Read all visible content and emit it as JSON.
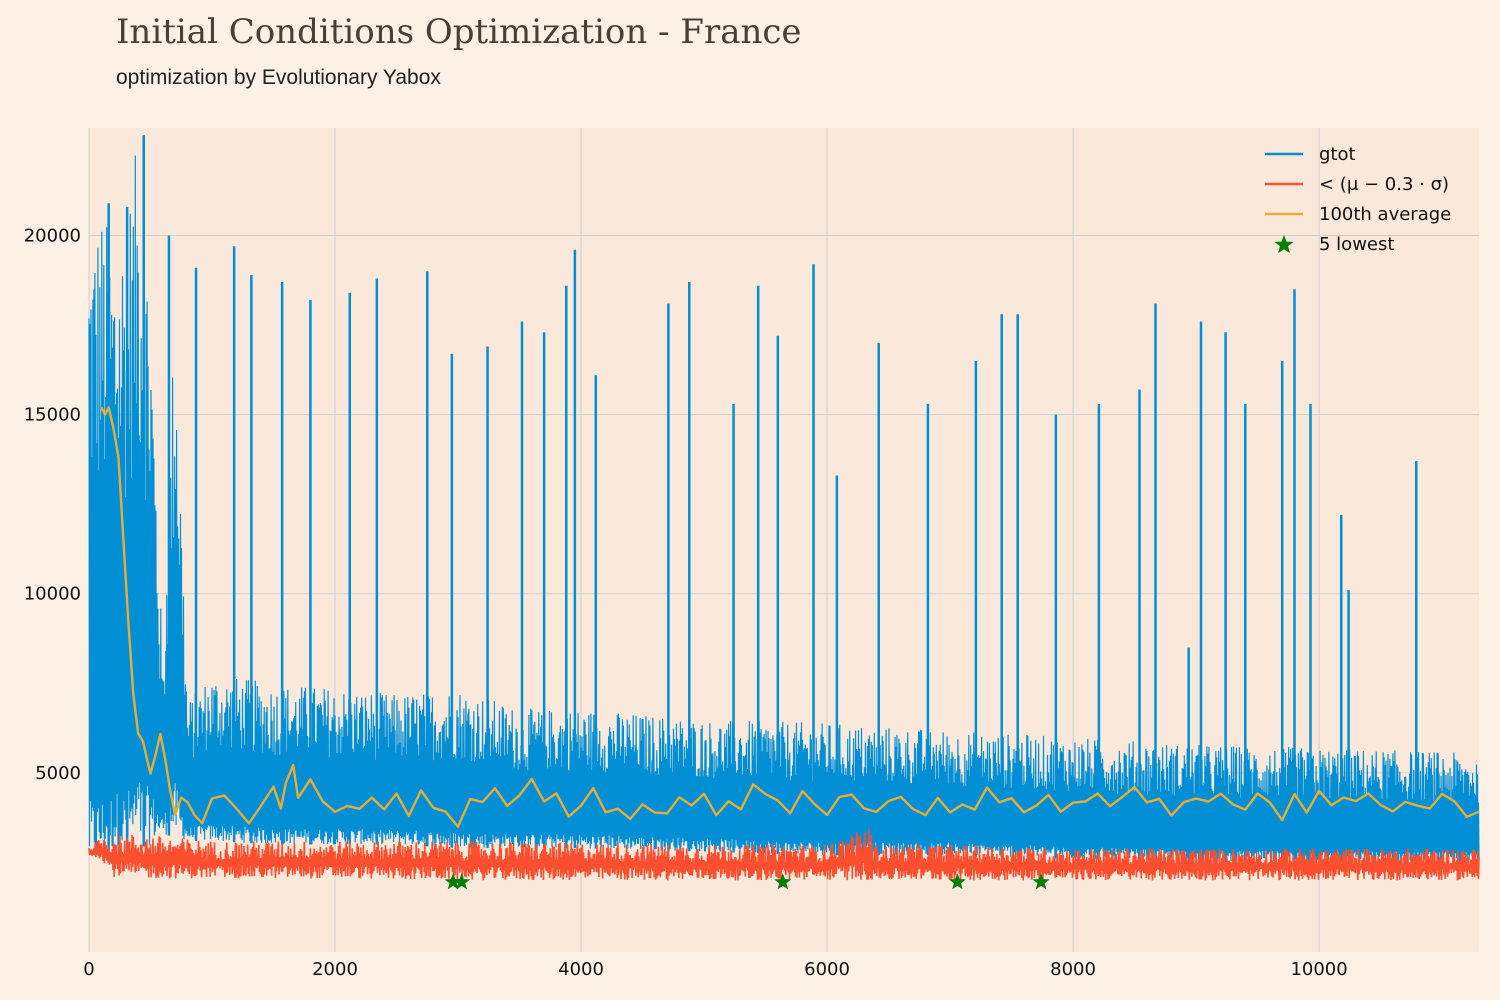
{
  "chart_data": {
    "type": "line",
    "title": "Initial Conditions Optimization - France",
    "subtitle": "optimization by Evolutionary Yabox",
    "xlabel": "",
    "ylabel": "",
    "xlim": [
      0,
      11300
    ],
    "ylim": [
      0,
      23000
    ],
    "x_ticks": [
      0,
      2000,
      4000,
      6000,
      8000,
      10000
    ],
    "y_ticks": [
      5000,
      10000,
      15000,
      20000
    ],
    "grid": true,
    "legend_position": "top-right",
    "colors": {
      "background": "#fdf1e6",
      "plot_area": "#fae8da",
      "grid": "#cfcfcf",
      "gtot": "#008fd5",
      "threshold": "#fc4f30",
      "average": "#e5ae38",
      "lowest": "#008000"
    },
    "series": [
      {
        "name": "gtot",
        "description_type": "envelope",
        "x": [
          0,
          100,
          200,
          300,
          400,
          500,
          600,
          700,
          800,
          1000,
          1500,
          2000,
          2500,
          3000,
          3500,
          4000,
          5000,
          6000,
          7000,
          8000,
          9000,
          10000,
          11000,
          11300
        ],
        "upper": [
          20500,
          20800,
          20000,
          20600,
          22800,
          18500,
          8000,
          18600,
          7000,
          7800,
          7500,
          7400,
          7200,
          7400,
          6800,
          6800,
          6500,
          6400,
          6200,
          6000,
          5800,
          5700,
          5600,
          5500
        ],
        "lower": [
          2400,
          2500,
          2800,
          2700,
          2900,
          3000,
          3300,
          3200,
          3100,
          3100,
          3000,
          3000,
          3000,
          2900,
          2900,
          2900,
          2800,
          2700,
          2700,
          2600,
          2500,
          2500,
          2500,
          2500
        ],
        "spikes": [
          {
            "x": 160,
            "y": 20900
          },
          {
            "x": 310,
            "y": 20800
          },
          {
            "x": 445,
            "y": 22800
          },
          {
            "x": 650,
            "y": 20000
          },
          {
            "x": 870,
            "y": 19100
          },
          {
            "x": 1180,
            "y": 19700
          },
          {
            "x": 1320,
            "y": 18900
          },
          {
            "x": 1570,
            "y": 18700
          },
          {
            "x": 1800,
            "y": 18200
          },
          {
            "x": 2120,
            "y": 18400
          },
          {
            "x": 2340,
            "y": 18800
          },
          {
            "x": 2750,
            "y": 19000
          },
          {
            "x": 2950,
            "y": 16700
          },
          {
            "x": 3240,
            "y": 16900
          },
          {
            "x": 3520,
            "y": 17600
          },
          {
            "x": 3700,
            "y": 17300
          },
          {
            "x": 3880,
            "y": 18600
          },
          {
            "x": 3950,
            "y": 19600
          },
          {
            "x": 4120,
            "y": 16100
          },
          {
            "x": 4710,
            "y": 18100
          },
          {
            "x": 4880,
            "y": 18700
          },
          {
            "x": 5240,
            "y": 15300
          },
          {
            "x": 5440,
            "y": 18600
          },
          {
            "x": 5600,
            "y": 17200
          },
          {
            "x": 5890,
            "y": 19200
          },
          {
            "x": 6080,
            "y": 13300
          },
          {
            "x": 6420,
            "y": 17000
          },
          {
            "x": 6820,
            "y": 15300
          },
          {
            "x": 7210,
            "y": 16500
          },
          {
            "x": 7420,
            "y": 17800
          },
          {
            "x": 7550,
            "y": 17800
          },
          {
            "x": 7860,
            "y": 15000
          },
          {
            "x": 8210,
            "y": 15300
          },
          {
            "x": 8540,
            "y": 15700
          },
          {
            "x": 8670,
            "y": 18100
          },
          {
            "x": 8940,
            "y": 8500
          },
          {
            "x": 9040,
            "y": 17600
          },
          {
            "x": 9240,
            "y": 17300
          },
          {
            "x": 9400,
            "y": 15300
          },
          {
            "x": 9700,
            "y": 16500
          },
          {
            "x": 9800,
            "y": 18500
          },
          {
            "x": 9930,
            "y": 15300
          },
          {
            "x": 10180,
            "y": 12200
          },
          {
            "x": 10240,
            "y": 10100
          },
          {
            "x": 10790,
            "y": 13700
          }
        ]
      },
      {
        "name": "< (μ − 0.3 · σ)",
        "description_type": "band",
        "x": [
          0,
          100,
          200,
          400,
          700,
          1000,
          2000,
          3000,
          4000,
          5000,
          6000,
          6340,
          6400,
          7000,
          8000,
          9000,
          10000,
          11300
        ],
        "upper": [
          2900,
          3200,
          3300,
          3300,
          3200,
          3100,
          3100,
          3100,
          3050,
          3000,
          3000,
          3500,
          3000,
          3000,
          2900,
          2900,
          2900,
          2900
        ],
        "lower": [
          2700,
          2600,
          2100,
          2050,
          2050,
          2050,
          2050,
          2000,
          2000,
          2000,
          2000,
          2000,
          2000,
          2000,
          2000,
          2000,
          2000,
          2000
        ]
      },
      {
        "name": "100th average",
        "x": [
          100,
          130,
          160,
          200,
          240,
          280,
          320,
          360,
          400,
          440,
          470,
          500,
          540,
          580,
          620,
          660,
          700,
          750,
          800,
          860,
          920,
          1000,
          1100,
          1200,
          1300,
          1400,
          1500,
          1560,
          1600,
          1660,
          1700,
          1800,
          1900,
          2000,
          2100,
          2200,
          2300,
          2400,
          2500,
          2600,
          2700,
          2800,
          2900,
          3000,
          3100,
          3200,
          3300,
          3400,
          3500,
          3600,
          3700,
          3800,
          3900,
          4000,
          4100,
          4200,
          4300,
          4400,
          4500,
          4600,
          4700,
          4800,
          4900,
          5000,
          5100,
          5200,
          5300,
          5400,
          5500,
          5600,
          5700,
          5800,
          5900,
          6000,
          6100,
          6200,
          6300,
          6400,
          6500,
          6600,
          6700,
          6800,
          6900,
          7000,
          7100,
          7200,
          7300,
          7400,
          7500,
          7600,
          7700,
          7800,
          7900,
          8000,
          8100,
          8200,
          8300,
          8400,
          8500,
          8600,
          8700,
          8800,
          8900,
          9000,
          9100,
          9200,
          9300,
          9400,
          9500,
          9600,
          9700,
          9800,
          9900,
          10000,
          10100,
          10200,
          10300,
          10400,
          10500,
          10600,
          10700,
          10800,
          10900,
          11000,
          11100,
          11200,
          11300
        ],
        "y": [
          15200,
          15000,
          15200,
          14600,
          13800,
          11500,
          9200,
          7200,
          6100,
          5900,
          5400,
          5000,
          5500,
          6100,
          5400,
          4500,
          3800,
          4300,
          4200,
          3800,
          3600,
          4300,
          4400,
          4000,
          3600,
          4100,
          4600,
          4000,
          4700,
          5200,
          4300,
          4800,
          4200,
          3900,
          4100,
          4000,
          4300,
          4000,
          4400,
          3800,
          4500,
          4000,
          3900,
          3500,
          4300,
          4200,
          4600,
          4100,
          4400,
          4800,
          4200,
          4400,
          3800,
          4100,
          4600,
          3900,
          4000,
          3700,
          4100,
          3900,
          3900,
          4300,
          4100,
          4400,
          3800,
          4200,
          4000,
          4700,
          4400,
          4200,
          3900,
          4500,
          4100,
          3800,
          4300,
          4400,
          4000,
          3900,
          4200,
          4300,
          4000,
          3800,
          4300,
          3900,
          4100,
          4000,
          4600,
          4200,
          4300,
          3900,
          4100,
          4400,
          3900,
          4200,
          4200,
          4400,
          4100,
          4300,
          4600,
          4200,
          4300,
          3800,
          4200,
          4300,
          4200,
          4400,
          4100,
          4000,
          4400,
          4200,
          3700,
          4400,
          3900,
          4500,
          4100,
          4300,
          4200,
          4400,
          4100,
          3900,
          4200,
          4100,
          4000,
          4400,
          4200,
          3800,
          3900
        ]
      },
      {
        "name": "5 lowest",
        "type": "scatter",
        "x": [
          2960,
          3030,
          5640,
          7060,
          7740
        ],
        "y": [
          1950,
          1950,
          1950,
          1950,
          1950
        ]
      }
    ]
  }
}
